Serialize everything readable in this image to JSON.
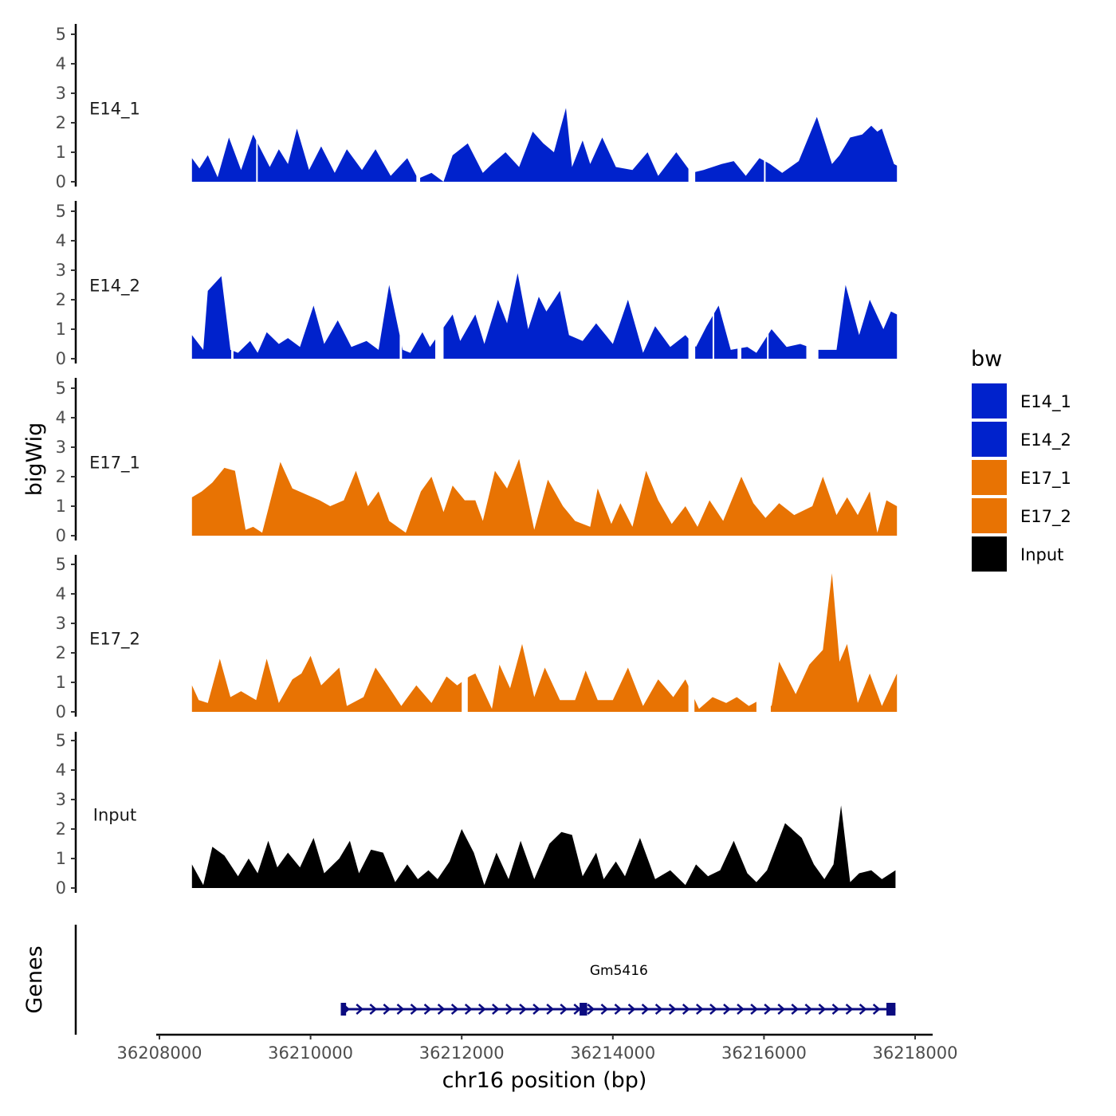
{
  "chart_data": {
    "type": "area",
    "chromosome": "chr16",
    "xlabel": "chr16 position (bp)",
    "ylabel": "bigWig",
    "genes_label": "Genes",
    "xlim": [
      36207980,
      36218250
    ],
    "x_ticks": [
      36208000,
      36210000,
      36212000,
      36214000,
      36216000,
      36218000
    ],
    "x_tick_labels": [
      "36208000",
      "36210000",
      "36212000",
      "36214000",
      "36216000",
      "36218000"
    ],
    "ylim": [
      0,
      5
    ],
    "y_ticks": [
      0,
      1,
      2,
      3,
      4,
      5
    ],
    "y_tick_labels": [
      "0",
      "1",
      "2",
      "3",
      "4",
      "5"
    ],
    "legend": {
      "title": "bw",
      "position": "right",
      "entries": [
        {
          "label": "E14_1",
          "color": "#0022CC"
        },
        {
          "label": "E14_2",
          "color": "#0022CC"
        },
        {
          "label": "E17_1",
          "color": "#E87303"
        },
        {
          "label": "E17_2",
          "color": "#E87303"
        },
        {
          "label": "Input",
          "color": "#000000"
        }
      ]
    },
    "tracks": [
      {
        "name": "E14_1",
        "color": "#0022CC",
        "x": [
          36208430,
          36208530,
          36208640,
          36208770,
          36208920,
          36209080,
          36209240,
          36209460,
          36209580,
          36209700,
          36209820,
          36209980,
          36210140,
          36210320,
          36210480,
          36210680,
          36210860,
          36211060,
          36211280,
          36211420,
          36211600,
          36211760,
          36211880,
          36212080,
          36212280,
          36212400,
          36212580,
          36212760,
          36212940,
          36213080,
          36213220,
          36213380,
          36213460,
          36213600,
          36213700,
          36213860,
          36214040,
          36214260,
          36214460,
          36214600,
          36214840,
          36215040,
          36215200,
          36215440,
          36215600,
          36215760,
          36215940,
          36216080,
          36216240,
          36216460,
          36216700,
          36216900,
          36217000,
          36217140,
          36217300,
          36217420,
          36217500,
          36217560,
          36217640,
          36217720,
          36217760
        ],
        "y": [
          0.8,
          0.45,
          0.9,
          0.15,
          1.5,
          0.4,
          1.6,
          0.5,
          1.1,
          0.6,
          1.8,
          0.4,
          1.2,
          0.3,
          1.1,
          0.4,
          1.1,
          0.2,
          0.8,
          0.1,
          0.3,
          0,
          0.9,
          1.3,
          0.3,
          0.6,
          1.0,
          0.5,
          1.7,
          1.3,
          1.0,
          2.5,
          0.5,
          1.4,
          0.6,
          1.5,
          0.5,
          0.4,
          1.0,
          0.2,
          1.0,
          0.3,
          0.4,
          0.6,
          0.7,
          0.2,
          0.8,
          0.6,
          0.3,
          0.7,
          2.2,
          0.6,
          0.9,
          1.5,
          1.6,
          1.9,
          1.7,
          1.8,
          1.2,
          0.6,
          0.55
        ],
        "gaps": [
          [
            36209280,
            36209300
          ],
          [
            36211400,
            36211450
          ],
          [
            36215000,
            36215090
          ],
          [
            36216000,
            36216020
          ]
        ]
      },
      {
        "name": "E14_2",
        "color": "#0022CC",
        "x": [
          36208430,
          36208580,
          36208640,
          36208820,
          36208940,
          36209040,
          36209200,
          36209300,
          36209420,
          36209580,
          36209700,
          36209860,
          36210040,
          36210180,
          36210360,
          36210540,
          36210740,
          36210900,
          36211040,
          36211220,
          36211320,
          36211480,
          36211580,
          36211880,
          36211980,
          36212180,
          36212300,
          36212480,
          36212600,
          36212740,
          36212880,
          36213020,
          36213120,
          36213300,
          36213420,
          36213600,
          36213780,
          36214000,
          36214200,
          36214400,
          36214560,
          36214760,
          36214960,
          36215100,
          36215240,
          36215400,
          36215560,
          36215780,
          36215900,
          36216100,
          36216300,
          36216480,
          36216700,
          36216960,
          36217080,
          36217260,
          36217400,
          36217580,
          36217680,
          36217760
        ],
        "y": [
          0.8,
          0.3,
          2.3,
          2.8,
          0.3,
          0.2,
          0.6,
          0.2,
          0.9,
          0.5,
          0.7,
          0.4,
          1.8,
          0.5,
          1.3,
          0.4,
          0.6,
          0.3,
          2.5,
          0.3,
          0.2,
          0.9,
          0.4,
          1.5,
          0.6,
          1.5,
          0.5,
          2.0,
          1.2,
          2.9,
          1.0,
          2.1,
          1.6,
          2.3,
          0.8,
          0.6,
          1.2,
          0.5,
          2.0,
          0.2,
          1.1,
          0.4,
          0.8,
          0.4,
          1.1,
          1.8,
          0.3,
          0.4,
          0.2,
          1.0,
          0.4,
          0.5,
          0.3,
          0.3,
          2.5,
          0.8,
          2.0,
          1.0,
          1.6,
          1.5
        ],
        "gaps": [
          [
            36208950,
            36208980
          ],
          [
            36211180,
            36211210
          ],
          [
            36211650,
            36211760
          ],
          [
            36215000,
            36215090
          ],
          [
            36215320,
            36215340
          ],
          [
            36215650,
            36215700
          ],
          [
            36216040,
            36216060
          ],
          [
            36216560,
            36216720
          ]
        ]
      },
      {
        "name": "E17_1",
        "color": "#E87303",
        "x": [
          36208430,
          36208560,
          36208700,
          36208860,
          36209000,
          36209140,
          36209240,
          36209360,
          36209600,
          36209760,
          36209940,
          36210120,
          36210260,
          36210440,
          36210600,
          36210760,
          36210900,
          36211040,
          36211260,
          36211460,
          36211600,
          36211760,
          36211880,
          36212040,
          36212180,
          36212280,
          36212440,
          36212600,
          36212760,
          36212960,
          36213140,
          36213340,
          36213500,
          36213700,
          36213800,
          36213980,
          36214100,
          36214260,
          36214440,
          36214600,
          36214780,
          36214960,
          36215120,
          36215280,
          36215460,
          36215700,
          36215860,
          36216020,
          36216200,
          36216400,
          36216640,
          36216780,
          36216960,
          36217100,
          36217240,
          36217400,
          36217500,
          36217620,
          36217760
        ],
        "y": [
          1.3,
          1.5,
          1.8,
          2.3,
          2.2,
          0.2,
          0.3,
          0.1,
          2.5,
          1.6,
          1.4,
          1.2,
          1.0,
          1.2,
          2.2,
          1.0,
          1.5,
          0.5,
          0.1,
          1.5,
          2.0,
          0.8,
          1.7,
          1.2,
          1.2,
          0.5,
          2.2,
          1.6,
          2.6,
          0.2,
          1.9,
          1.0,
          0.5,
          0.3,
          1.6,
          0.4,
          1.1,
          0.3,
          2.2,
          1.2,
          0.4,
          1.0,
          0.3,
          1.2,
          0.5,
          2.0,
          1.1,
          0.6,
          1.1,
          0.7,
          1.0,
          2.0,
          0.7,
          1.3,
          0.7,
          1.5,
          0.1,
          1.2,
          1.0
        ],
        "gaps": []
      },
      {
        "name": "E17_2",
        "color": "#E87303",
        "x": [
          36208430,
          36208520,
          36208640,
          36208800,
          36208940,
          36209080,
          36209280,
          36209420,
          36209580,
          36209760,
          36209880,
          36210000,
          36210140,
          36210380,
          36210480,
          36210700,
          36210860,
          36211020,
          36211200,
          36211400,
          36211600,
          36211800,
          36211940,
          36212100,
          36212180,
          36212400,
          36212500,
          36212640,
          36212800,
          36212960,
          36213100,
          36213300,
          36213500,
          36213640,
          36213800,
          36214000,
          36214200,
          36214400,
          36214600,
          36214800,
          36214960,
          36215140,
          36215320,
          36215500,
          36215640,
          36215800,
          36215940,
          36216100,
          36216200,
          36216420,
          36216600,
          36216780,
          36216900,
          36217000,
          36217100,
          36217240,
          36217400,
          36217560,
          36217760
        ],
        "y": [
          0.9,
          0.4,
          0.3,
          1.8,
          0.5,
          0.7,
          0.4,
          1.8,
          0.3,
          1.1,
          1.3,
          1.9,
          0.9,
          1.5,
          0.2,
          0.5,
          1.5,
          0.9,
          0.2,
          0.9,
          0.3,
          1.2,
          0.9,
          1.2,
          1.3,
          0.1,
          1.6,
          0.8,
          2.3,
          0.5,
          1.5,
          0.4,
          0.4,
          1.4,
          0.4,
          0.4,
          1.5,
          0.2,
          1.1,
          0.5,
          1.1,
          0.1,
          0.5,
          0.3,
          0.5,
          0.2,
          0.4,
          0.2,
          1.7,
          0.6,
          1.6,
          2.1,
          4.7,
          1.7,
          2.3,
          0.3,
          1.3,
          0.2,
          1.3
        ],
        "gaps": [
          [
            36212000,
            36212080
          ],
          [
            36215000,
            36215080
          ],
          [
            36215900,
            36216090
          ]
        ]
      },
      {
        "name": "Input",
        "color": "#000000",
        "x": [
          36208430,
          36208580,
          36208700,
          36208860,
          36209040,
          36209180,
          36209300,
          36209440,
          36209560,
          36209700,
          36209860,
          36210040,
          36210180,
          36210380,
          36210520,
          36210640,
          36210800,
          36210960,
          36211120,
          36211280,
          36211420,
          36211560,
          36211680,
          36211840,
          36212000,
          36212160,
          36212300,
          36212460,
          36212620,
          36212780,
          36212960,
          36213160,
          36213320,
          36213460,
          36213600,
          36213780,
          36213880,
          36214040,
          36214160,
          36214360,
          36214560,
          36214760,
          36214960,
          36215100,
          36215260,
          36215420,
          36215600,
          36215780,
          36215900,
          36216040,
          36216280,
          36216500,
          36216660,
          36216800,
          36216920,
          36217020,
          36217140,
          36217260,
          36217420,
          36217560,
          36217740
        ],
        "y": [
          0.8,
          0.1,
          1.4,
          1.1,
          0.4,
          1.0,
          0.5,
          1.6,
          0.7,
          1.2,
          0.7,
          1.7,
          0.5,
          1.0,
          1.6,
          0.5,
          1.3,
          1.2,
          0.2,
          0.8,
          0.3,
          0.6,
          0.3,
          0.9,
          2.0,
          1.2,
          0.1,
          1.2,
          0.3,
          1.6,
          0.3,
          1.5,
          1.9,
          1.8,
          0.4,
          1.2,
          0.3,
          0.9,
          0.4,
          1.7,
          0.3,
          0.6,
          0.1,
          0.8,
          0.4,
          0.6,
          1.6,
          0.5,
          0.2,
          0.6,
          2.2,
          1.7,
          0.8,
          0.3,
          0.8,
          2.8,
          0.2,
          0.5,
          0.6,
          0.3,
          0.6
        ],
        "gaps": []
      }
    ],
    "gene": {
      "name": "Gm5416",
      "start": 36210420,
      "end": 36217740,
      "strand": "+",
      "exons": [
        [
          36210400,
          36210470
        ],
        [
          36213560,
          36213660
        ],
        [
          36217620,
          36217740
        ]
      ],
      "color": "#0B0B80"
    }
  }
}
